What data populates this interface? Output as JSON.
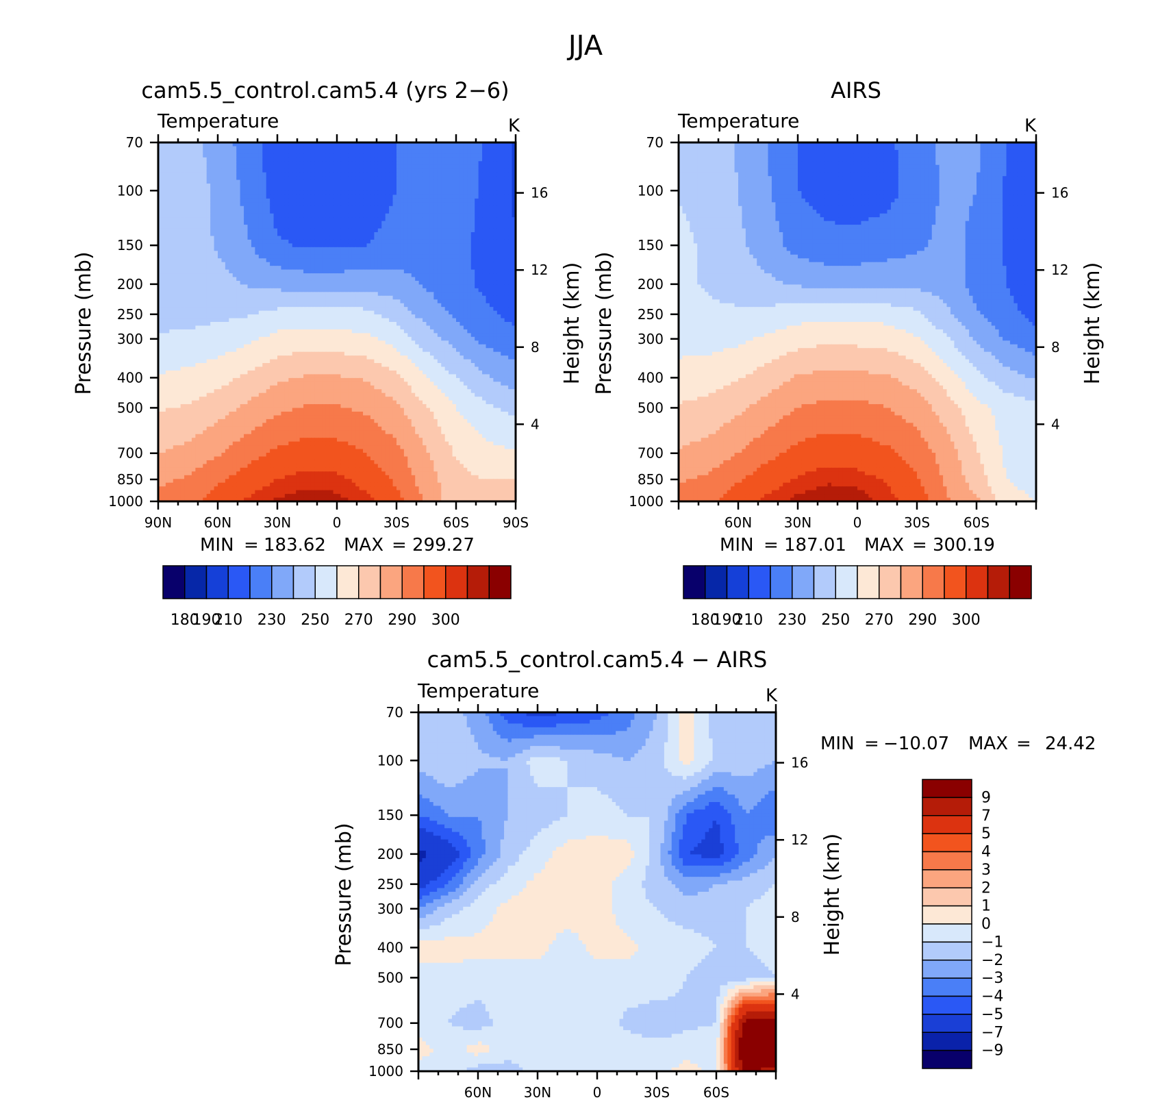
{
  "figure": {
    "title": "JJA"
  },
  "palettes": {
    "absolute": [
      "#08006b",
      "#0627a8",
      "#1540d8",
      "#2a58f5",
      "#4a7ff7",
      "#80a8f9",
      "#b2cbfb",
      "#d8e8fb",
      "#fde8d6",
      "#fcc8ae",
      "#fba57f",
      "#f7794a",
      "#f2541e",
      "#dc3310",
      "#b51c08",
      "#8a0000"
    ],
    "difference": [
      "#08006b",
      "#0a22aa",
      "#1a3fd6",
      "#2a58f5",
      "#4a7ff7",
      "#80a8f9",
      "#b2cbfb",
      "#d8e8fb",
      "#fde8d6",
      "#fcc8ae",
      "#fba57f",
      "#f7794a",
      "#f2541e",
      "#dc3310",
      "#b51c08",
      "#8a0000"
    ]
  },
  "panels": [
    {
      "title": "cam5.5_control.cam5.4 (yrs 2−6)",
      "variable": "Temperature",
      "units": "K",
      "left_axis_label": "Pressure (mb)",
      "right_axis_label": "Height (km)",
      "min_label": "MIN",
      "min_value": "183.62",
      "max_label": "MAX",
      "max_value": "299.27",
      "colorbar_ticks": [
        "180",
        "190",
        "210",
        "230",
        "250",
        "270",
        "290",
        "300"
      ]
    },
    {
      "title": "AIRS",
      "variable": "Temperature",
      "units": "K",
      "left_axis_label": "Pressure (mb)",
      "right_axis_label": "Height (km)",
      "min_label": "MIN",
      "min_value": "187.01",
      "max_label": "MAX",
      "max_value": "300.19",
      "colorbar_ticks": [
        "180",
        "190",
        "210",
        "230",
        "250",
        "270",
        "290",
        "300"
      ]
    },
    {
      "title": "cam5.5_control.cam5.4 − AIRS",
      "variable": "Temperature",
      "units": "K",
      "left_axis_label": "Pressure (mb)",
      "right_axis_label": "Height (km)",
      "min_label": "MIN",
      "min_value": "−10.07",
      "max_label": "MAX",
      "max_value": "24.42",
      "colorbar_ticks": [
        "9",
        "7",
        "5",
        "4",
        "3",
        "2",
        "1",
        "0",
        "−1",
        "−2",
        "−3",
        "−4",
        "−5",
        "−7",
        "−9"
      ]
    }
  ],
  "chart_data": [
    {
      "type": "heatmap",
      "title": "cam5.5_control.cam5.4 (yrs 2−6)",
      "subtitle": "Temperature",
      "units": "K",
      "ylabel": "Pressure (mb)",
      "y2label": "Height (km)",
      "x_ticks": [
        "90N",
        "60N",
        "30N",
        "0",
        "30S",
        "60S",
        "90S"
      ],
      "x_tick_lat": [
        90,
        60,
        30,
        0,
        -30,
        -60,
        -90
      ],
      "xlim": [
        90,
        -90
      ],
      "y_ticks": [
        "70",
        "100",
        "150",
        "200",
        "250",
        "300",
        "400",
        "500",
        "700",
        "850",
        "1000"
      ],
      "y_tick_p": [
        70,
        100,
        150,
        200,
        250,
        300,
        400,
        500,
        700,
        850,
        1000
      ],
      "ylim": [
        1000,
        70
      ],
      "y2_ticks": [
        "4",
        "8",
        "12",
        "16"
      ],
      "y2_tick_km": [
        4,
        8,
        12,
        16
      ],
      "contour_levels": [
        180,
        185,
        190,
        200,
        210,
        220,
        230,
        240,
        250,
        260,
        270,
        280,
        290,
        295,
        300
      ],
      "lat": [
        90,
        75,
        60,
        45,
        30,
        15,
        0,
        -15,
        -30,
        -45,
        -60,
        -75,
        -90
      ],
      "pressure": [
        70,
        100,
        150,
        200,
        250,
        300,
        400,
        500,
        700,
        850,
        1000
      ],
      "values": [
        [
          228,
          224,
          216,
          205,
          194,
          192,
          191,
          193,
          200,
          208,
          207,
          199,
          188
        ],
        [
          227,
          225,
          218,
          207,
          196,
          193,
          192,
          194,
          200,
          207,
          205,
          198,
          189
        ],
        [
          226,
          225,
          219,
          211,
          201,
          199,
          199,
          200,
          204,
          207,
          203,
          197,
          190
        ],
        [
          226,
          226,
          224,
          219,
          217,
          215,
          215,
          216,
          214,
          209,
          203,
          198,
          192
        ],
        [
          227,
          227,
          228,
          229,
          233,
          234,
          234,
          233,
          226,
          216,
          208,
          202,
          197
        ],
        [
          231,
          232,
          234,
          238,
          243,
          245,
          244,
          242,
          236,
          225,
          216,
          207,
          203
        ],
        [
          241,
          243,
          246,
          252,
          258,
          261,
          261,
          259,
          252,
          240,
          230,
          221,
          215
        ],
        [
          249,
          251,
          256,
          262,
          268,
          271,
          271,
          268,
          262,
          251,
          240,
          232,
          227
        ],
        [
          260,
          263,
          269,
          276,
          282,
          285,
          284,
          280,
          273,
          261,
          249,
          243,
          241
        ],
        [
          268,
          271,
          278,
          285,
          290,
          293,
          292,
          287,
          278,
          265,
          253,
          250,
          250
        ],
        [
          273,
          277,
          285,
          291,
          296,
          298,
          297,
          292,
          284,
          268,
          254,
          253,
          253
        ]
      ],
      "no_data_label": ""
    },
    {
      "type": "heatmap",
      "title": "AIRS",
      "subtitle": "Temperature",
      "units": "K",
      "ylabel": "Pressure (mb)",
      "y2label": "Height (km)",
      "x_ticks": [
        "60N",
        "30N",
        "0",
        "30S",
        "60S"
      ],
      "x_tick_lat": [
        60,
        30,
        0,
        -30,
        -60
      ],
      "xlim": [
        90,
        -90
      ],
      "y_ticks": [
        "70",
        "100",
        "150",
        "200",
        "250",
        "300",
        "400",
        "500",
        "700",
        "850",
        "1000"
      ],
      "y_tick_p": [
        70,
        100,
        150,
        200,
        250,
        300,
        400,
        500,
        700,
        850,
        1000
      ],
      "ylim": [
        1000,
        70
      ],
      "y2_ticks": [
        "4",
        "8",
        "12",
        "16"
      ],
      "y2_tick_km": [
        4,
        8,
        12,
        16
      ],
      "contour_levels": [
        180,
        185,
        190,
        200,
        210,
        220,
        230,
        240,
        250,
        260,
        270,
        280,
        290,
        295,
        300
      ],
      "lat": [
        90,
        75,
        60,
        45,
        30,
        15,
        0,
        -15,
        -30,
        -45,
        -60,
        -75,
        -90
      ],
      "pressure": [
        70,
        100,
        150,
        200,
        250,
        300,
        400,
        500,
        700,
        850,
        1000
      ],
      "values": [
        [
          228,
          225,
          219,
          210,
          200,
          197,
          196,
          198,
          205,
          213,
          212,
          200,
          190
        ],
        [
          229,
          226,
          220,
          211,
          200,
          196,
          195,
          197,
          204,
          212,
          210,
          199,
          190
        ],
        [
          233,
          228,
          222,
          215,
          206,
          203,
          203,
          205,
          208,
          213,
          208,
          199,
          191
        ],
        [
          232,
          229,
          225,
          222,
          219,
          217,
          217,
          218,
          218,
          215,
          207,
          200,
          193
        ],
        [
          234,
          232,
          232,
          233,
          236,
          237,
          237,
          236,
          232,
          222,
          211,
          203,
          197
        ],
        [
          236,
          236,
          238,
          242,
          246,
          248,
          247,
          246,
          241,
          231,
          219,
          209,
          203
        ],
        [
          244,
          246,
          249,
          255,
          261,
          263,
          263,
          261,
          256,
          245,
          233,
          224,
          219
        ],
        [
          251,
          253,
          258,
          264,
          270,
          273,
          273,
          270,
          265,
          255,
          243,
          236,
          233
        ],
        [
          261,
          264,
          270,
          277,
          283,
          286,
          285,
          282,
          276,
          265,
          251,
          238,
          232
        ],
        [
          269,
          272,
          279,
          286,
          291,
          294,
          293,
          289,
          281,
          268,
          255,
          240,
          235
        ],
        [
          274,
          278,
          286,
          292,
          297,
          299,
          298,
          293,
          286,
          271,
          262,
          245,
          240
        ]
      ]
    },
    {
      "type": "heatmap",
      "title": "cam5.5_control.cam5.4 − AIRS",
      "subtitle": "Temperature",
      "units": "K",
      "ylabel": "Pressure (mb)",
      "y2label": "Height (km)",
      "x_ticks": [
        "60N",
        "30N",
        "0",
        "30S",
        "60S"
      ],
      "x_tick_lat": [
        60,
        30,
        0,
        -30,
        -60
      ],
      "xlim": [
        90,
        -90
      ],
      "y_ticks": [
        "70",
        "100",
        "150",
        "200",
        "250",
        "300",
        "400",
        "500",
        "700",
        "850",
        "1000"
      ],
      "y_tick_p": [
        70,
        100,
        150,
        200,
        250,
        300,
        400,
        500,
        700,
        850,
        1000
      ],
      "ylim": [
        1000,
        70
      ],
      "y2_ticks": [
        "4",
        "8",
        "12",
        "16"
      ],
      "y2_tick_km": [
        4,
        8,
        12,
        16
      ],
      "contour_levels": [
        -9,
        -7,
        -5,
        -4,
        -3,
        -2,
        -1,
        0,
        1,
        2,
        3,
        4,
        5,
        7,
        9
      ],
      "lat": [
        90,
        75,
        60,
        45,
        30,
        15,
        0,
        -15,
        -30,
        -45,
        -60,
        -75,
        -90
      ],
      "pressure": [
        70,
        100,
        150,
        200,
        250,
        300,
        400,
        500,
        700,
        850,
        1000
      ],
      "values": [
        [
          -1.5,
          -1.5,
          -2.5,
          -4.5,
          -5.5,
          -5.0,
          -4.5,
          -3.5,
          -2.0,
          0.5,
          -1.5,
          -1.5,
          -1.5
        ],
        [
          -1.5,
          -1.0,
          -1.8,
          -2.0,
          -0.5,
          -1.0,
          -1.5,
          -2.0,
          -1.5,
          0.5,
          -1.2,
          -1.5,
          -2.0
        ],
        [
          -4.0,
          -3.0,
          -3.0,
          -2.0,
          -1.5,
          -1.0,
          -0.5,
          -1.0,
          -1.0,
          -4.0,
          -5.0,
          -3.0,
          -4.0
        ],
        [
          -7.5,
          -6.0,
          -3.5,
          -1.5,
          -0.5,
          0.5,
          0.5,
          0.5,
          -1.5,
          -5.0,
          -5.5,
          -3.5,
          -2.0
        ],
        [
          -5.5,
          -4.0,
          -1.5,
          -0.5,
          0.3,
          0.6,
          0.5,
          -0.5,
          -1.5,
          -2.5,
          -2.0,
          -1.5,
          -1.0
        ],
        [
          -3.0,
          -1.5,
          -0.5,
          0.3,
          0.5,
          0.5,
          0.5,
          -0.5,
          -1.0,
          -1.5,
          -1.5,
          -1.0,
          -0.5
        ],
        [
          0.5,
          0.5,
          0.3,
          0.3,
          0.3,
          -0.5,
          0.3,
          0.3,
          -0.5,
          -0.5,
          -1.0,
          -1.0,
          -0.5
        ],
        [
          -0.5,
          -0.5,
          -0.5,
          -0.5,
          -0.5,
          -0.5,
          -0.5,
          -0.5,
          -0.5,
          -1.0,
          -1.5,
          -1.5,
          -1.0
        ],
        [
          -0.5,
          -1.0,
          -1.5,
          -0.5,
          -0.5,
          -0.5,
          -0.5,
          -1.2,
          -1.5,
          -1.2,
          -1.0,
          10,
          10
        ],
        [
          0.5,
          -0.5,
          0.5,
          -0.5,
          -0.5,
          -0.5,
          -0.5,
          -0.5,
          -0.7,
          -0.5,
          -0.5,
          12,
          24
        ],
        [
          -0.5,
          -0.5,
          -1.5,
          -1.5,
          -0.5,
          -0.5,
          -0.5,
          -0.5,
          -0.5,
          0.5,
          -0.5,
          10,
          6
        ]
      ]
    }
  ]
}
